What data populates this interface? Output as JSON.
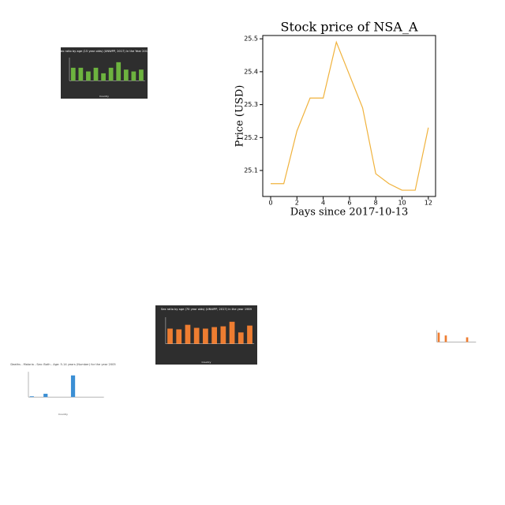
{
  "chart_data": [
    {
      "type": "line",
      "title": "Stock price of NSA_A",
      "xlabel": "Days since 2017-10-13",
      "ylabel": "Price (USD)",
      "x": [
        0,
        1,
        2,
        3,
        4,
        5,
        6,
        7,
        8,
        9,
        10,
        11,
        12
      ],
      "series": [
        {
          "name": "NSA_A",
          "color": "#f0b23c",
          "values": [
            25.06,
            25.06,
            25.22,
            25.32,
            25.32,
            25.49,
            25.39,
            25.29,
            25.09,
            25.06,
            25.04,
            25.04,
            25.23
          ]
        }
      ],
      "xlim": [
        -0.6,
        12.55
      ],
      "xticks": [
        0,
        2,
        4,
        6,
        8,
        10,
        12
      ],
      "ylim": [
        25.021,
        25.51
      ],
      "yticks": [
        25.1,
        25.2,
        25.3,
        25.4,
        25.5
      ]
    },
    {
      "type": "bar",
      "title": "Sex ratio by age (15 year olds) (UNWPP, 2017) in the Year 2015",
      "xlabel": "Country",
      "background": "#2e2e2e",
      "text_color": "#ffffff",
      "color": "#6db33f",
      "values": [
        14,
        14,
        10,
        14,
        8,
        14,
        20,
        12,
        10,
        12
      ],
      "ylim": [
        0,
        25
      ]
    },
    {
      "type": "bar",
      "title": "Sex ratio by age (70 year olds) (UNWPP, 2017) in the year 1989",
      "xlabel": "Country",
      "background": "#2e2e2e",
      "text_color": "#ffffff",
      "color": "#ee7d31",
      "values": [
        20,
        19,
        25,
        21,
        20,
        22,
        23,
        29,
        15,
        24
      ],
      "ylim": [
        0,
        35
      ]
    },
    {
      "type": "bar",
      "title": "Deaths - Malaria - Sex: Both - Age: 5-14 years (Number) for the year 2005",
      "xlabel": "Country",
      "background": "#ffffff",
      "text_color": "#444444",
      "color": "#3b8fd4",
      "values": [
        2,
        0,
        9,
        0,
        0,
        0,
        60,
        0,
        0,
        0,
        0
      ],
      "ylim": [
        0,
        70
      ]
    },
    {
      "type": "bar",
      "background": "#ffffff",
      "text_color": "#444444",
      "color": "#ee7d31",
      "values": [
        20,
        0,
        14,
        0,
        0,
        0,
        0,
        0,
        10,
        0,
        0
      ],
      "ylim": [
        0,
        25
      ]
    }
  ]
}
